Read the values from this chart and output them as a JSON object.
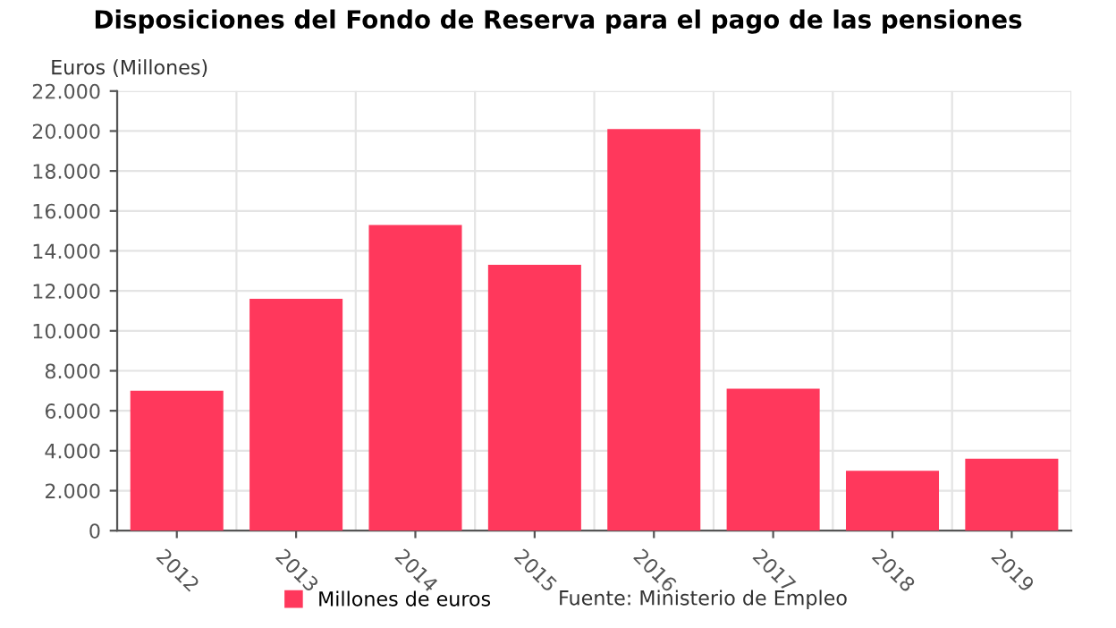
{
  "chart_data": {
    "type": "bar",
    "title": "Disposiciones del Fondo de Reserva para el pago de las pensiones",
    "ylabel": "Euros (Millones)",
    "categories": [
      "2012",
      "2013",
      "2014",
      "2015",
      "2016",
      "2017",
      "2018",
      "2019"
    ],
    "series": [
      {
        "name": "Millones de euros",
        "color": "#ff385c",
        "values": [
          7000,
          11600,
          15300,
          13300,
          20100,
          7100,
          3000,
          3600
        ]
      }
    ],
    "ylim": [
      0,
      22000
    ],
    "yticks": [
      {
        "value": 0,
        "label": "0"
      },
      {
        "value": 2000,
        "label": "2.000"
      },
      {
        "value": 4000,
        "label": "4.000"
      },
      {
        "value": 6000,
        "label": "6.000"
      },
      {
        "value": 8000,
        "label": "8.000"
      },
      {
        "value": 10000,
        "label": "10.000"
      },
      {
        "value": 12000,
        "label": "12.000"
      },
      {
        "value": 14000,
        "label": "14.000"
      },
      {
        "value": 16000,
        "label": "16.000"
      },
      {
        "value": 18000,
        "label": "18.000"
      },
      {
        "value": 20000,
        "label": "20.000"
      },
      {
        "value": 22000,
        "label": "22.000"
      }
    ],
    "grid": true,
    "legend": "bottom",
    "annotations": [
      "Fuente: Ministerio de Empleo"
    ]
  }
}
